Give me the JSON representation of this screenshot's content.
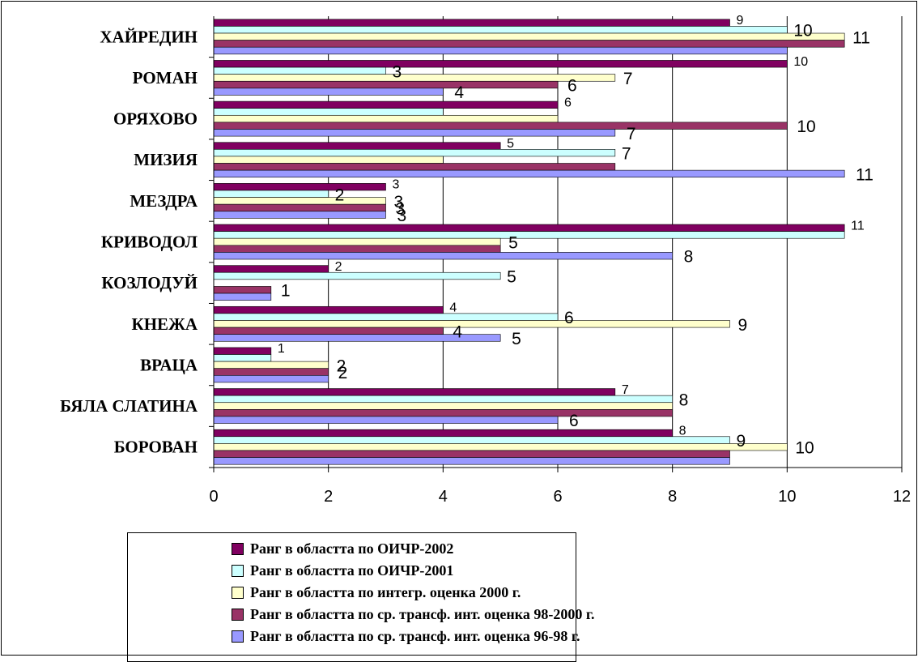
{
  "chart_data": {
    "type": "bar",
    "orientation": "horizontal",
    "categories": [
      "БОРОВАН",
      "БЯЛА СЛАТИНА",
      "ВРАЦА",
      "КНЕЖА",
      "КОЗЛОДУЙ",
      "КРИВОДОЛ",
      "МЕЗДРА",
      "МИЗИЯ",
      "ОРЯХОВО",
      "РОМАН",
      "ХАЙРЕДИН"
    ],
    "series": [
      {
        "name": "Ранг в областта по ОИЧР-2002",
        "color": "#800060",
        "values": [
          8,
          7,
          1,
          4,
          2,
          11,
          3,
          5,
          6,
          10,
          9
        ]
      },
      {
        "name": "Ранг в областта по ОИЧР-2001",
        "color": "#ccffff",
        "values": [
          9,
          8,
          1,
          6,
          5,
          11,
          2,
          7,
          4,
          3,
          10
        ]
      },
      {
        "name": "Ранг в областта по интегр. оценка 2000 г.",
        "color": "#ffffcc",
        "values": [
          10,
          8,
          2,
          9,
          0,
          5,
          3,
          4,
          6,
          7,
          11
        ]
      },
      {
        "name": "Ранг в областта по ср. трансф. инт. оценка 98-2000 г.",
        "color": "#993366",
        "values": [
          9,
          8,
          2,
          4,
          1,
          5,
          3,
          7,
          10,
          6,
          11
        ]
      },
      {
        "name": "Ранг в областта по ср. трансф. инт. оценка 96-98 г.",
        "color": "#9999ff",
        "values": [
          9,
          6,
          2,
          5,
          1,
          8,
          3,
          11,
          7,
          4,
          10
        ]
      }
    ],
    "data_labels": [
      {
        "category": "ХАЙРЕДИН",
        "texts": [
          "9",
          "10",
          "11"
        ]
      },
      {
        "category": "РОМАН",
        "texts": [
          "10",
          "3",
          "7",
          "6",
          "4"
        ]
      },
      {
        "category": "ОРЯХОВО",
        "texts": [
          "6",
          "10",
          "7"
        ]
      },
      {
        "category": "МИЗИЯ",
        "texts": [
          "5",
          "7",
          "11"
        ]
      },
      {
        "category": "МЕЗДРА",
        "texts": [
          "3",
          "2",
          "3",
          "3",
          "3"
        ]
      },
      {
        "category": "КРИВОДОЛ",
        "texts": [
          "11",
          "5",
          "8"
        ]
      },
      {
        "category": "КОЗЛОДУЙ",
        "texts": [
          "2",
          "5",
          "1"
        ]
      },
      {
        "category": "КНЕЖА",
        "texts": [
          "4",
          "6",
          "9",
          "4",
          "5"
        ]
      },
      {
        "category": "ВРАЦА",
        "texts": [
          "1",
          "2",
          "2"
        ]
      },
      {
        "category": "БЯЛА СЛАТИНА",
        "texts": [
          "7",
          "8",
          "6"
        ]
      },
      {
        "category": "БОРОВАН",
        "texts": [
          "8",
          "9",
          "10"
        ]
      }
    ],
    "xlim": [
      0,
      12
    ],
    "xticks": [
      "0",
      "2",
      "4",
      "6",
      "8",
      "10",
      "12"
    ],
    "grid": "vertical",
    "legend": "bottom"
  }
}
